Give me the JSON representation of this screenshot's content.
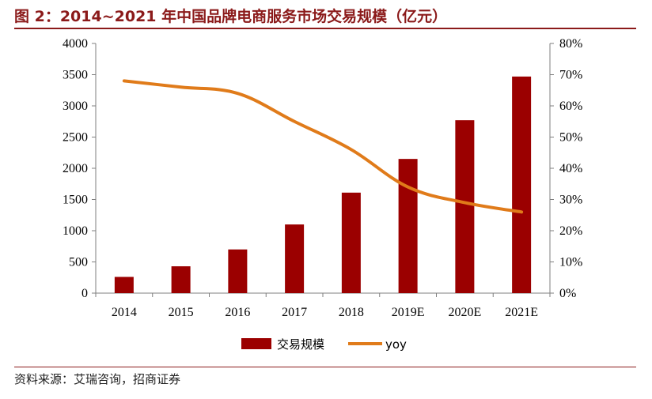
{
  "title": "图 2：2014~2021 年中国品牌电商服务市场交易规模（亿元）",
  "source": "资料来源：艾瑞咨询，招商证券",
  "chart_data": {
    "type": "bar",
    "categories": [
      "2014",
      "2015",
      "2016",
      "2017",
      "2018",
      "2019E",
      "2020E",
      "2021E"
    ],
    "series": [
      {
        "name": "交易规模",
        "type": "bar",
        "axis": "left",
        "color": "#9b0000",
        "values": [
          260,
          430,
          700,
          1100,
          1610,
          2150,
          2770,
          3470
        ]
      },
      {
        "name": "yoy",
        "type": "line",
        "axis": "right",
        "color": "#e07b1a",
        "values": [
          68,
          66,
          64,
          55,
          46,
          34,
          29,
          26
        ]
      }
    ],
    "y_left": {
      "min": 0,
      "max": 4000,
      "ticks": [
        "0",
        "500",
        "1000",
        "1500",
        "2000",
        "2500",
        "3000",
        "3500",
        "4000"
      ]
    },
    "y_right": {
      "min": 0,
      "max": 80,
      "ticks": [
        "0%",
        "10%",
        "20%",
        "30%",
        "40%",
        "50%",
        "60%",
        "70%",
        "80%"
      ]
    },
    "grid": false,
    "legend_position": "bottom"
  }
}
